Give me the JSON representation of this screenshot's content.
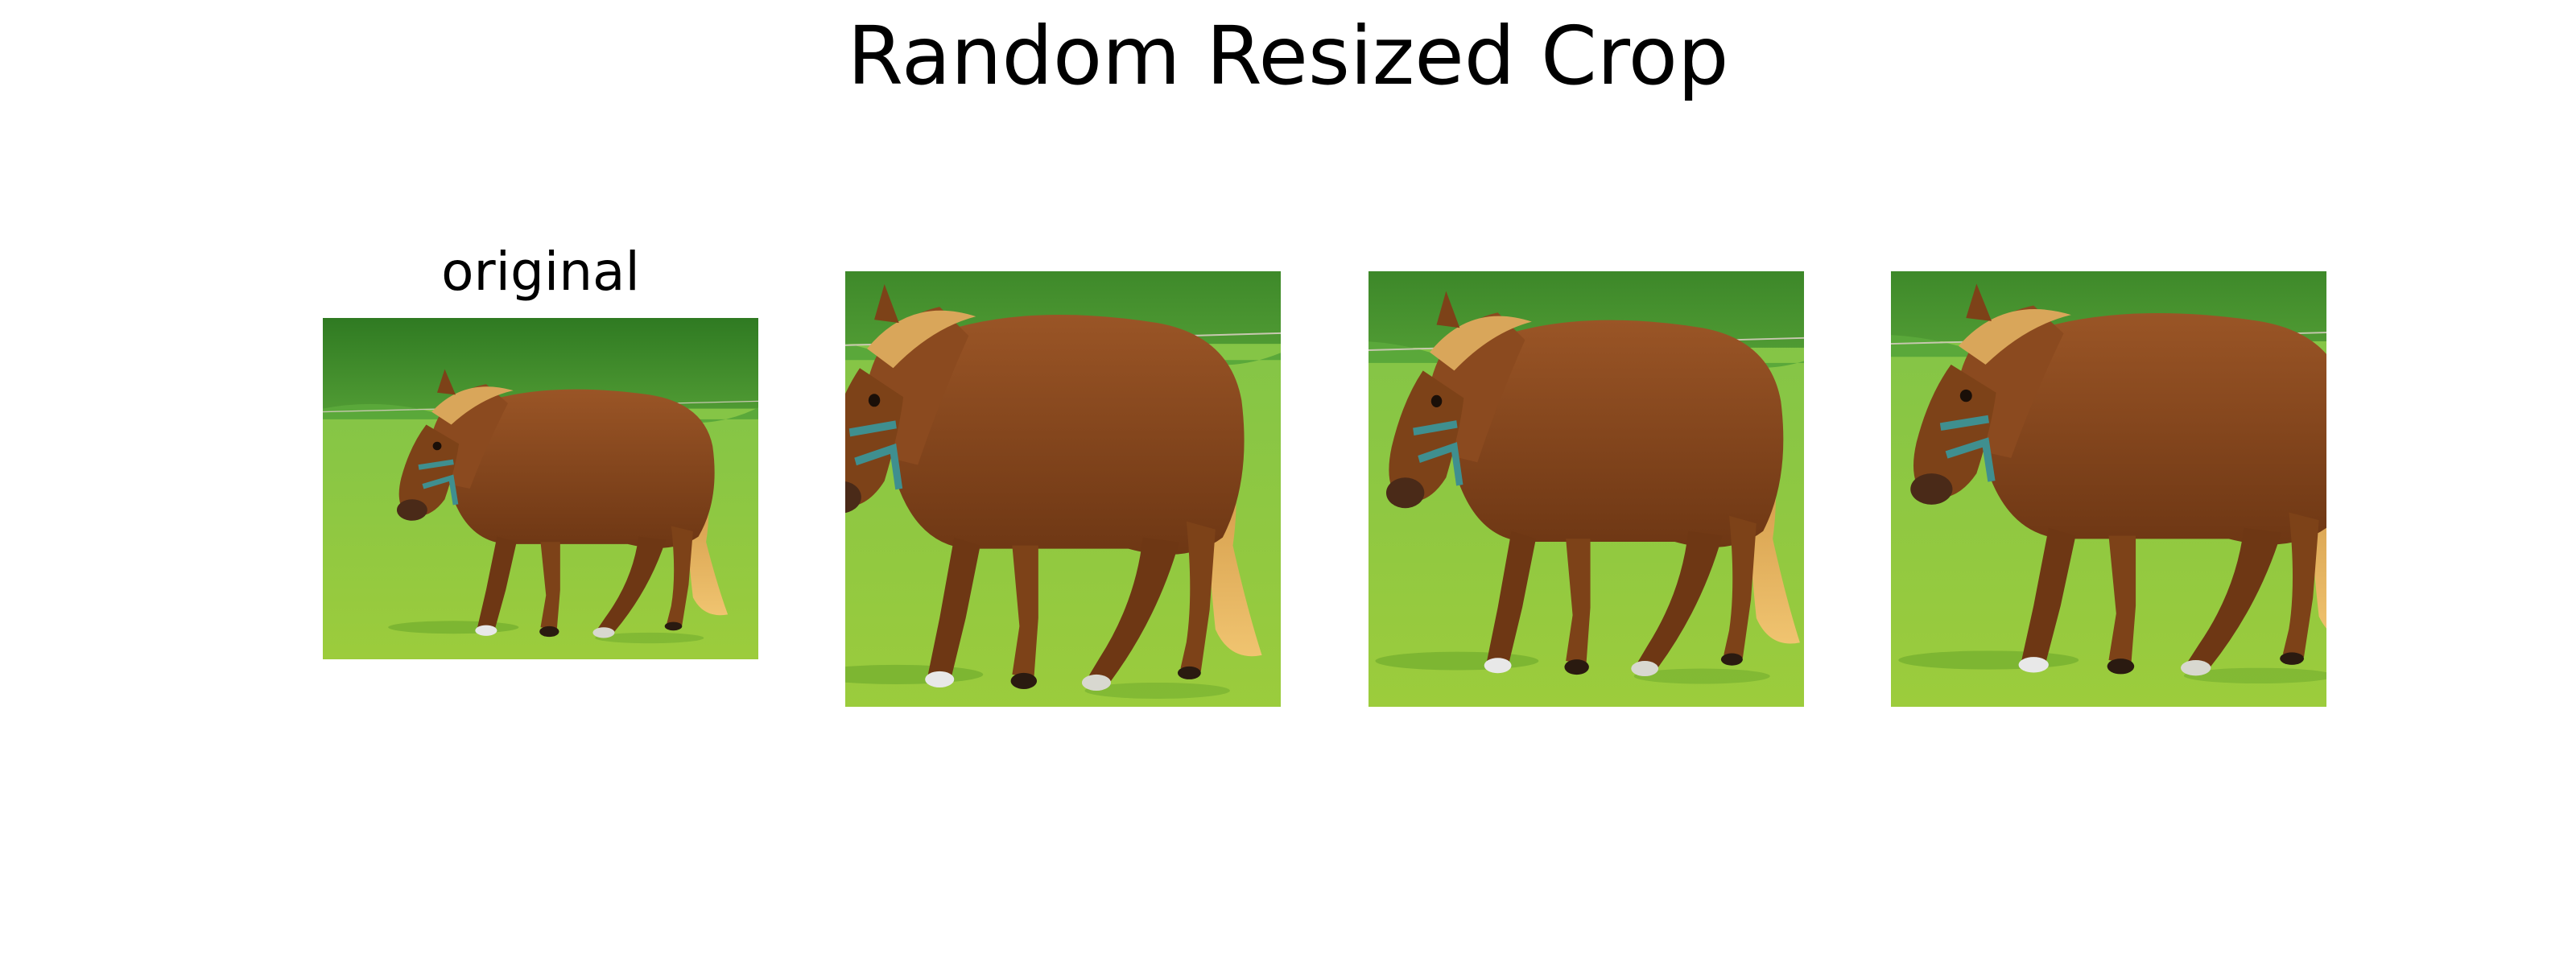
{
  "figure": {
    "title": "Random Resized Crop",
    "panels": [
      {
        "title": "original",
        "image": "horse-photo-original"
      },
      {
        "title": "",
        "image": "horse-photo-crop-1"
      },
      {
        "title": "",
        "image": "horse-photo-crop-2"
      },
      {
        "title": "",
        "image": "horse-photo-crop-3"
      }
    ]
  },
  "colors": {
    "grass": "#8cc63f",
    "grass_dark": "#6aa82c",
    "hedge": "#3f8a2a",
    "horse": "#8b4a1f",
    "horse_dark": "#5e2f10",
    "mane": "#d9a65a",
    "halter": "#3f8f8f"
  }
}
